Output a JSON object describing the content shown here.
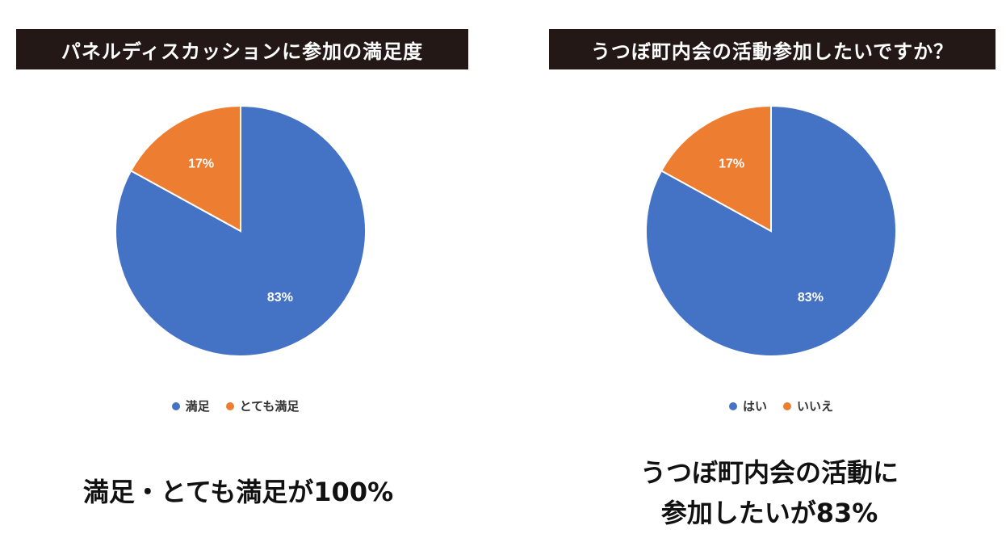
{
  "colors": {
    "blue": "#4472C4",
    "orange": "#ED7D31",
    "title_bg": "#231815"
  },
  "chart_data": [
    {
      "type": "pie",
      "title": "パネルディスカッションに参加の満足度",
      "categories": [
        "満足",
        "とても満足"
      ],
      "values": [
        83,
        17
      ],
      "labels": [
        "83%",
        "17%"
      ],
      "colors": [
        "#4472C4",
        "#ED7D31"
      ],
      "legend_position": "bottom",
      "caption": "満足・とても満足が100%"
    },
    {
      "type": "pie",
      "title": "うつぼ町内会の活動参加したいですか？",
      "categories": [
        "はい",
        "いいえ"
      ],
      "values": [
        83,
        17
      ],
      "labels": [
        "83%",
        "17%"
      ],
      "colors": [
        "#4472C4",
        "#ED7D31"
      ],
      "legend_position": "bottom",
      "caption_lines": [
        "うつぼ町内会の活動に",
        "参加したいが83%"
      ]
    }
  ]
}
